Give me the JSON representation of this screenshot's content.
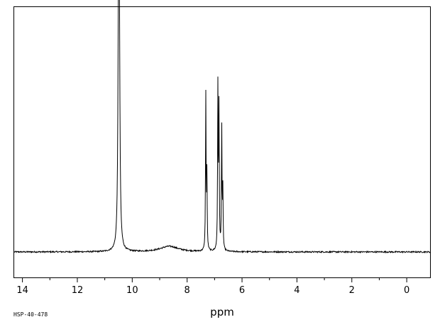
{
  "sample_code": "HSP-40-478",
  "chart_data": {
    "type": "line",
    "title": "",
    "xlabel": "ppm",
    "ylabel": "",
    "x_reversed": true,
    "xlim": [
      14.3,
      -0.85
    ],
    "ylim": [
      -0.05,
      1.0
    ],
    "grid": false,
    "x_ticks": [
      14,
      12,
      10,
      8,
      6,
      4,
      2,
      0
    ],
    "x_tick_labels": [
      "14",
      "12",
      "10",
      "8",
      "6",
      "4",
      "2",
      "0"
    ],
    "minor_tick_step": 1,
    "baseline": 0.0,
    "peaks": [
      {
        "ppm": 10.5,
        "height": 0.95,
        "width": 0.025
      },
      {
        "ppm": 10.47,
        "height": 0.88,
        "width": 0.025
      },
      {
        "ppm": 8.65,
        "height": 0.025,
        "width": 0.4
      },
      {
        "ppm": 7.32,
        "height": 0.69,
        "width": 0.012
      },
      {
        "ppm": 7.28,
        "height": 0.33,
        "width": 0.012
      },
      {
        "ppm": 6.88,
        "height": 0.72,
        "width": 0.012
      },
      {
        "ppm": 6.84,
        "height": 0.63,
        "width": 0.012
      },
      {
        "ppm": 6.74,
        "height": 0.55,
        "width": 0.012
      },
      {
        "ppm": 6.7,
        "height": 0.27,
        "width": 0.012
      }
    ]
  }
}
